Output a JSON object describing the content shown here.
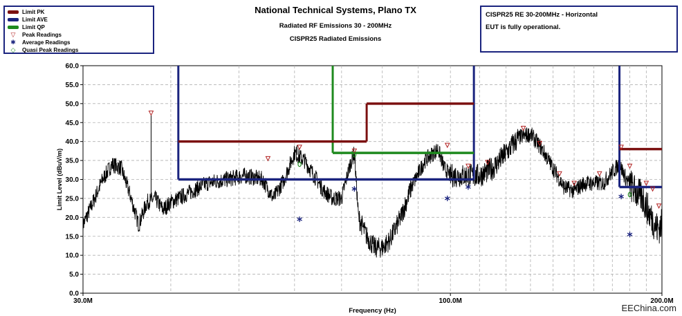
{
  "header": {
    "title": "National Technical Systems, Plano TX",
    "subtitle": "Radiated RF Emissions 30 - 200MHz",
    "subtitle2": "CISPR25 Radiated Emissions"
  },
  "info": {
    "line1": "CISPR25 RE 30-200MHz - Horizontal",
    "line2": "EUT is fully operational."
  },
  "legend": [
    {
      "label": "Limit PK",
      "kind": "line",
      "color": "#7b1010"
    },
    {
      "label": "Limit AVE",
      "kind": "line",
      "color": "#1a237e"
    },
    {
      "label": "Limit QP",
      "kind": "line",
      "color": "#1e8a1e"
    },
    {
      "label": "Peak Readings",
      "kind": "symbol",
      "symbol": "▽",
      "color": "#b22222"
    },
    {
      "label": "Average Readings",
      "kind": "symbol",
      "symbol": "✱",
      "color": "#1a237e"
    },
    {
      "label": "Quasi Peak Readings",
      "kind": "symbol",
      "symbol": "◇",
      "color": "#1e8a1e"
    }
  ],
  "watermark": "EEChina.com",
  "chart_data": {
    "type": "line",
    "x_scale": "log",
    "xlim": [
      30,
      200
    ],
    "ylim": [
      0,
      60
    ],
    "xlabel": "Frequency (Hz)",
    "ylabel": "Limit Level (dBuV/m)",
    "x_tick_labels": [
      {
        "value": 30,
        "label": "30.0M"
      },
      {
        "value": 100,
        "label": "100.0M"
      },
      {
        "value": 200,
        "label": "200.0M"
      }
    ],
    "y_ticks": [
      0,
      5,
      10,
      15,
      20,
      25,
      30,
      35,
      40,
      45,
      50,
      55,
      60
    ],
    "y_tick_labels": [
      "0.0",
      "5.0",
      "10.0",
      "15.0",
      "20.0",
      "25.0",
      "30.0",
      "35.0",
      "40.0",
      "45.0",
      "50.0",
      "55.0",
      "60.0"
    ],
    "grid": true,
    "limits": {
      "pk": [
        {
          "x1": 41,
          "x2": 76,
          "y": 40
        },
        {
          "x1": 76,
          "x2": 108,
          "y": 50
        },
        {
          "x1": 174,
          "x2": 200,
          "y": 38
        }
      ],
      "ave": [
        {
          "x1": 41,
          "x2": 108,
          "y": 30
        },
        {
          "x1": 174,
          "x2": 200,
          "y": 28
        }
      ],
      "qp": [
        {
          "x1": 68,
          "x2": 108,
          "y": 37
        }
      ],
      "ave_vertical": [
        41,
        108,
        174
      ],
      "qp_vertical": [
        68
      ]
    },
    "trace_points": [
      [
        30.0,
        18
      ],
      [
        31.0,
        24
      ],
      [
        32.0,
        30
      ],
      [
        33.0,
        34
      ],
      [
        34.0,
        33
      ],
      [
        35.0,
        26
      ],
      [
        36.0,
        18
      ],
      [
        37.0,
        24
      ],
      [
        38.0,
        25
      ],
      [
        39.0,
        22
      ],
      [
        40.0,
        24
      ],
      [
        41.0,
        25
      ],
      [
        43.0,
        27
      ],
      [
        45.0,
        29
      ],
      [
        48.0,
        30
      ],
      [
        51.0,
        31
      ],
      [
        54.0,
        30
      ],
      [
        56.0,
        25
      ],
      [
        58.0,
        30
      ],
      [
        60.0,
        37
      ],
      [
        62.0,
        35
      ],
      [
        64.0,
        31
      ],
      [
        66.0,
        27
      ],
      [
        68.0,
        25
      ],
      [
        70.0,
        25
      ],
      [
        72.0,
        34
      ],
      [
        73.0,
        37
      ],
      [
        74.0,
        20
      ],
      [
        76.0,
        15
      ],
      [
        78.0,
        12
      ],
      [
        80.0,
        12
      ],
      [
        82.0,
        14
      ],
      [
        85.0,
        20
      ],
      [
        88.0,
        28
      ],
      [
        92.0,
        35
      ],
      [
        96.0,
        38
      ],
      [
        98.0,
        33
      ],
      [
        100.0,
        31
      ],
      [
        105.0,
        31
      ],
      [
        110.0,
        31
      ],
      [
        115.0,
        33
      ],
      [
        120.0,
        37
      ],
      [
        125.0,
        41
      ],
      [
        130.0,
        42
      ],
      [
        135.0,
        38
      ],
      [
        140.0,
        33
      ],
      [
        145.0,
        28
      ],
      [
        150.0,
        27
      ],
      [
        155.0,
        29
      ],
      [
        160.0,
        29
      ],
      [
        165.0,
        29
      ],
      [
        170.0,
        32
      ],
      [
        174.0,
        34
      ],
      [
        178.0,
        30
      ],
      [
        183.0,
        27
      ],
      [
        188.0,
        25
      ],
      [
        193.0,
        20
      ],
      [
        197.0,
        17
      ],
      [
        200.0,
        18
      ]
    ],
    "spikes": [
      {
        "x": 37.5,
        "y": 47
      },
      {
        "x": 60.5,
        "y": 39
      }
    ],
    "peak_readings": [
      {
        "x": 37.5,
        "y": 47.5
      },
      {
        "x": 55.0,
        "y": 35.5
      },
      {
        "x": 61.0,
        "y": 38.5
      },
      {
        "x": 73.0,
        "y": 37.5
      },
      {
        "x": 99.0,
        "y": 39.0
      },
      {
        "x": 106.0,
        "y": 33.5
      },
      {
        "x": 113.0,
        "y": 34.5
      },
      {
        "x": 127.0,
        "y": 43.5
      },
      {
        "x": 134.0,
        "y": 39.5
      },
      {
        "x": 143.0,
        "y": 31.5
      },
      {
        "x": 150.0,
        "y": 29.0
      },
      {
        "x": 163.0,
        "y": 31.5
      },
      {
        "x": 175.0,
        "y": 38.5
      },
      {
        "x": 180.0,
        "y": 33.5
      },
      {
        "x": 190.0,
        "y": 29.0
      },
      {
        "x": 194.0,
        "y": 27.5
      },
      {
        "x": 198.0,
        "y": 23.0
      }
    ],
    "average_readings": [
      {
        "x": 61.0,
        "y": 19.5
      },
      {
        "x": 73.0,
        "y": 27.5
      },
      {
        "x": 99.0,
        "y": 25.0
      },
      {
        "x": 106.0,
        "y": 28.0
      },
      {
        "x": 175.0,
        "y": 25.5
      },
      {
        "x": 180.0,
        "y": 15.5
      }
    ],
    "qp_readings": [
      {
        "x": 61.0,
        "y": 34.0
      },
      {
        "x": 73.0,
        "y": 36.5
      },
      {
        "x": 180.0,
        "y": 26.0
      }
    ]
  }
}
